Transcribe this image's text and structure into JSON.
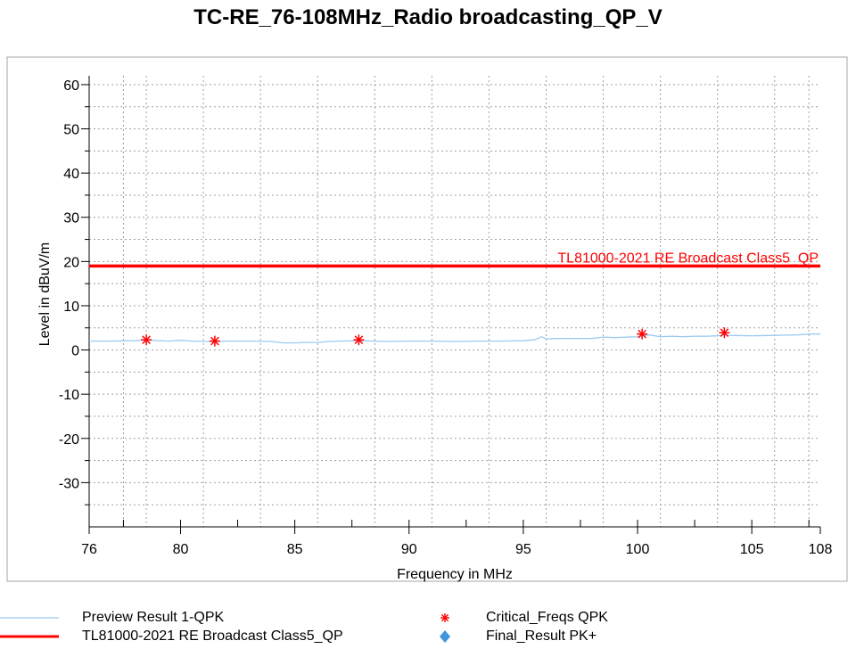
{
  "chart_data": {
    "type": "line",
    "title": "TC-RE_76-108MHz_Radio broadcasting_QP_V",
    "xlabel": "Frequency in MHz",
    "ylabel": "Level in dBuV/m",
    "xlim": [
      76,
      108
    ],
    "ylim": [
      -40,
      62
    ],
    "x_ticks": [
      76,
      80,
      85,
      90,
      95,
      100,
      105,
      108
    ],
    "y_ticks": [
      -30,
      -20,
      -10,
      0,
      10,
      20,
      30,
      40,
      50,
      60
    ],
    "x_tick_labels": [
      "76",
      "80",
      "85",
      "90",
      "95",
      "100",
      "105",
      "108"
    ],
    "y_tick_labels": [
      "-30",
      "-20",
      "-10",
      "0",
      "10",
      "20",
      "30",
      "40",
      "50",
      "60"
    ],
    "grid": true,
    "legend_position": "bottom",
    "series": [
      {
        "name": "Preview Result 1-QPK",
        "color": "#9ecbf1",
        "style": "line",
        "x": [
          76.0,
          77.0,
          78.0,
          78.5,
          79.0,
          79.5,
          80.0,
          80.5,
          81.0,
          81.5,
          82.0,
          83.0,
          84.0,
          84.5,
          85.0,
          85.5,
          86.0,
          86.5,
          87.0,
          87.8,
          88.5,
          89.0,
          90.0,
          91.0,
          92.0,
          93.0,
          94.0,
          95.0,
          95.5,
          95.8,
          96.0,
          96.5,
          97.0,
          98.0,
          98.5,
          99.0,
          99.5,
          100.0,
          100.2,
          100.5,
          101.0,
          101.5,
          102.0,
          102.5,
          103.0,
          103.5,
          103.8,
          104.0,
          105.0,
          106.0,
          107.0,
          107.5,
          108.0
        ],
        "y": [
          2.0,
          2.0,
          2.1,
          2.3,
          2.1,
          2.0,
          2.2,
          2.0,
          1.9,
          1.9,
          2.0,
          2.0,
          1.9,
          1.6,
          1.6,
          1.7,
          1.7,
          1.9,
          2.0,
          2.1,
          2.0,
          1.9,
          2.0,
          2.0,
          1.9,
          2.0,
          2.0,
          2.1,
          2.3,
          3.0,
          2.5,
          2.6,
          2.6,
          2.6,
          2.9,
          2.8,
          2.9,
          3.0,
          3.2,
          3.4,
          3.0,
          3.1,
          3.0,
          3.1,
          3.1,
          3.2,
          3.4,
          3.3,
          3.2,
          3.3,
          3.4,
          3.6,
          3.6
        ]
      },
      {
        "name": "TL81000-2021 RE Broadcast Class5_QP",
        "color": "#ff0000",
        "style": "limit",
        "x": [
          76,
          108
        ],
        "y": [
          19,
          19
        ],
        "annotation": "TL81000-2021 RE Broadcast Class5_QP"
      },
      {
        "name": "Critical_Freqs QPK",
        "color": "#ff0000",
        "style": "asterisk",
        "x": [
          78.5,
          81.5,
          87.8,
          100.2,
          103.8
        ],
        "y": [
          2.3,
          2.0,
          2.3,
          3.6,
          3.9
        ]
      },
      {
        "name": "Final_Result PK+",
        "color": "#3f96dc",
        "style": "diamond",
        "x": [],
        "y": []
      }
    ]
  },
  "legend": [
    {
      "label": "Preview Result 1-QPK",
      "swatch": "thin-line",
      "color": "#9ecbf1"
    },
    {
      "label": "TL81000-2021 RE Broadcast Class5_QP",
      "swatch": "thick-line",
      "color": "#ff0000"
    },
    {
      "label": "Critical_Freqs QPK",
      "swatch": "asterisk",
      "color": "#ff0000"
    },
    {
      "label": "Final_Result PK+",
      "swatch": "diamond",
      "color": "#3f96dc"
    }
  ]
}
